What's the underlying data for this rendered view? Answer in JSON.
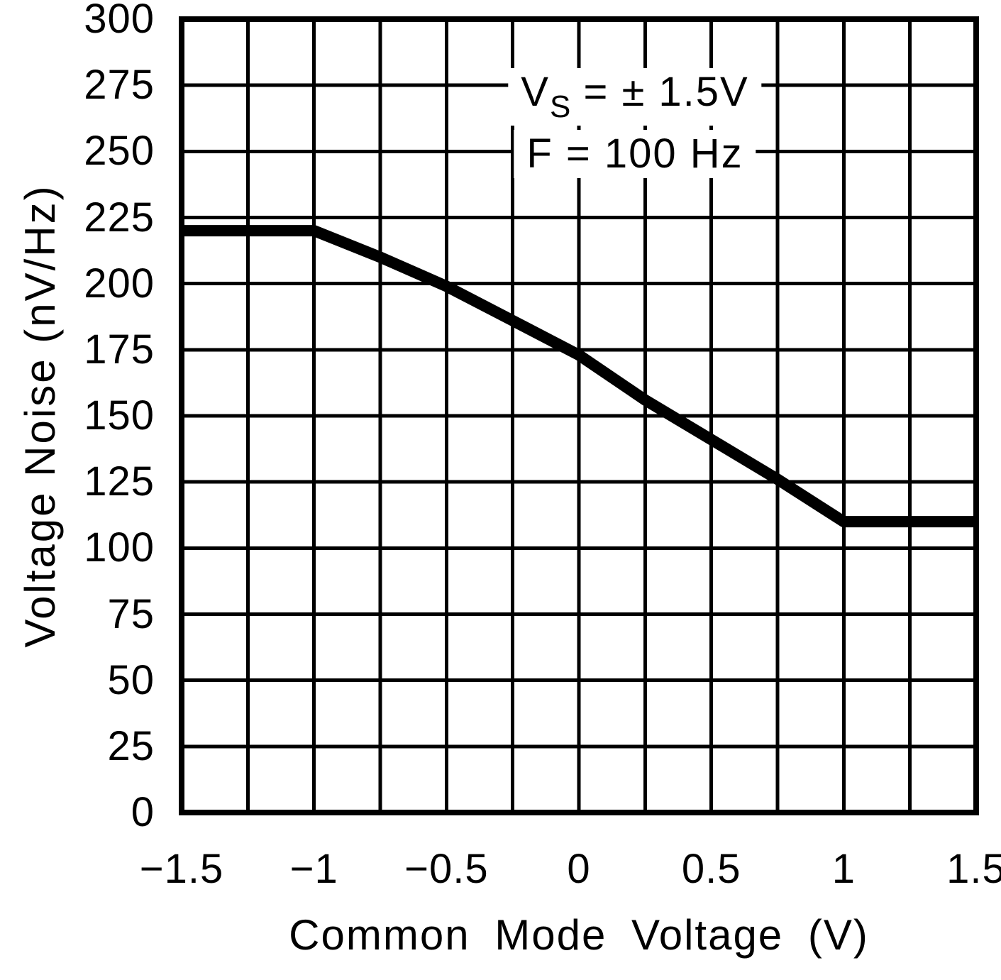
{
  "figure": {
    "y_axis_title": "Voltage Noise (nV/Hz)",
    "x_axis_title": "Common Mode Voltage (V)",
    "annotation": {
      "line1_base": "V",
      "line1_sub": "S",
      "line1_rest": " = ± 1.5V",
      "line2": "F = 100 Hz"
    },
    "colors": {
      "background": "#ffffff",
      "ink": "#000000"
    }
  },
  "chart_data": {
    "type": "line",
    "title": "",
    "xlabel": "Common Mode Voltage (V)",
    "ylabel": "Voltage Noise (nV/Hz)",
    "xlim": [
      -1.5,
      1.5
    ],
    "ylim": [
      0,
      300
    ],
    "x_grid_step": 0.25,
    "y_grid_step": 25,
    "grid": true,
    "legend": "none",
    "grid_color": "#000000",
    "line_color": "#000000",
    "xticks": [
      -1.5,
      -1,
      -0.5,
      0,
      0.5,
      1,
      1.5
    ],
    "xtick_labels": [
      "−1.5",
      "−1",
      "−0.5",
      "0",
      "0.5",
      "1",
      "1.5"
    ],
    "yticks": [
      300,
      275,
      250,
      225,
      200,
      175,
      150,
      125,
      100,
      75,
      50,
      25,
      0
    ],
    "ytick_labels": [
      "300",
      "275",
      "250",
      "225",
      "200",
      "175",
      "150",
      "125",
      "100",
      "75",
      "50",
      "25",
      "0"
    ],
    "annotations": [
      "Vs = ± 1.5V",
      "F = 100 Hz"
    ],
    "series": [
      {
        "name": "voltage noise",
        "x": [
          -1.5,
          -1.25,
          -1.0,
          -0.75,
          -0.5,
          -0.25,
          0.0,
          0.25,
          0.5,
          0.75,
          1.0,
          1.25,
          1.5
        ],
        "y": [
          220,
          220,
          220,
          210,
          199,
          186,
          173,
          156,
          141,
          126,
          110,
          110,
          110
        ]
      }
    ]
  }
}
